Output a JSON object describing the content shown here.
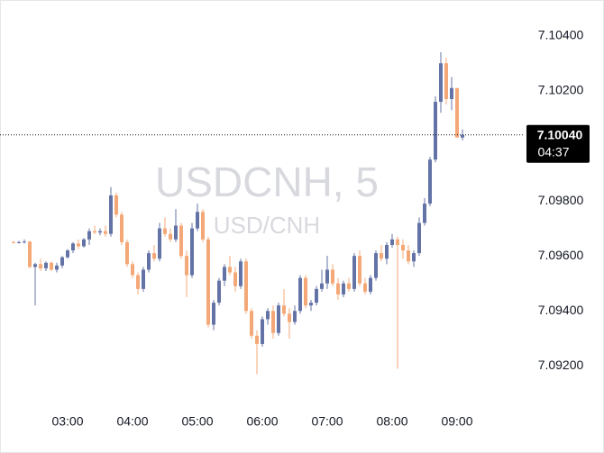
{
  "chart_data": {
    "type": "candlestick",
    "watermark_title": "USDCNH, 5",
    "watermark_subtitle": "USD/CNH",
    "categories": [
      null,
      null,
      null,
      null,
      null,
      null,
      null,
      null,
      null,
      null,
      "03:00",
      null,
      null,
      null,
      null,
      null,
      null,
      null,
      null,
      null,
      null,
      null,
      "04:00",
      null,
      null,
      null,
      null,
      null,
      null,
      null,
      null,
      null,
      null,
      null,
      "05:00",
      null,
      null,
      null,
      null,
      null,
      null,
      null,
      null,
      null,
      null,
      null,
      "06:00",
      null,
      null,
      null,
      null,
      null,
      null,
      null,
      null,
      null,
      null,
      null,
      "07:00",
      null,
      null,
      null,
      null,
      null,
      null,
      null,
      null,
      null,
      null,
      null,
      "08:00",
      null,
      null,
      null,
      null,
      null,
      null,
      null,
      null,
      null,
      null,
      null,
      "09:00",
      null
    ],
    "open": [
      7.0965,
      7.09648,
      7.0965,
      7.09652,
      7.0956,
      7.0957,
      7.09555,
      7.09575,
      7.0955,
      7.09565,
      7.09595,
      7.0962,
      7.09645,
      7.09635,
      7.0966,
      7.0969,
      7.09685,
      7.0969,
      7.0968,
      7.0982,
      7.0975,
      7.0965,
      7.0957,
      7.0953,
      7.0948,
      7.0955,
      7.0961,
      7.0959,
      7.097,
      7.0968,
      7.0966,
      7.0971,
      7.096,
      7.0953,
      7.097,
      7.0976,
      7.0966,
      7.0935,
      7.0943,
      7.0951,
      7.0956,
      7.0954,
      7.0949,
      7.0958,
      7.094,
      7.0931,
      7.0928,
      7.0937,
      7.094,
      7.0932,
      7.0942,
      7.0939,
      7.0936,
      7.094,
      7.0952,
      7.0942,
      7.0943,
      7.0948,
      7.095,
      7.0955,
      7.095,
      7.0946,
      7.095,
      7.0948,
      7.096,
      7.095,
      7.0947,
      7.0952,
      7.0961,
      7.0959,
      7.0964,
      7.0966,
      7.0964,
      7.0962,
      7.0958,
      7.0961,
      7.0972,
      7.0979,
      7.0995,
      7.1016,
      7.103,
      7.1017,
      7.1021,
      7.1003
    ],
    "high": [
      7.09655,
      7.09655,
      7.0966,
      7.09655,
      7.09575,
      7.0959,
      7.0958,
      7.0958,
      7.09575,
      7.096,
      7.09625,
      7.0965,
      7.0966,
      7.09665,
      7.097,
      7.0971,
      7.097,
      7.0971,
      7.0985,
      7.0983,
      7.0976,
      7.0966,
      7.0958,
      7.0954,
      7.0956,
      7.0962,
      7.0964,
      7.0972,
      7.0974,
      7.097,
      7.0977,
      7.0972,
      7.0962,
      7.0972,
      7.0979,
      7.0977,
      7.0967,
      7.0944,
      7.0952,
      7.0957,
      7.096,
      7.0956,
      7.0959,
      7.0959,
      7.0941,
      7.0933,
      7.0938,
      7.0941,
      7.0942,
      7.0943,
      7.0948,
      7.0941,
      7.0942,
      7.0953,
      7.0953,
      7.0944,
      7.0949,
      7.0955,
      7.096,
      7.0957,
      7.0952,
      7.0951,
      7.0952,
      7.0961,
      7.0962,
      7.0952,
      7.0953,
      7.0962,
      7.0964,
      7.0965,
      7.0968,
      7.0967,
      7.0966,
      7.0964,
      7.0962,
      7.0974,
      7.0981,
      7.0996,
      7.1018,
      7.1034,
      7.1032,
      7.1025,
      7.1021,
      7.1006
    ],
    "low": [
      7.09645,
      7.09645,
      7.09645,
      7.09555,
      7.0942,
      7.09545,
      7.09545,
      7.09545,
      7.0954,
      7.09555,
      7.0959,
      7.0961,
      7.09625,
      7.0963,
      7.0964,
      7.0968,
      7.09675,
      7.0967,
      7.0967,
      7.0974,
      7.0964,
      7.0956,
      7.0952,
      7.0946,
      7.0947,
      7.0954,
      7.0958,
      7.0958,
      7.0967,
      7.0965,
      7.0965,
      7.0959,
      7.0945,
      7.0952,
      7.0969,
      7.0965,
      7.0934,
      7.0933,
      7.0942,
      7.0949,
      7.0953,
      7.0947,
      7.0948,
      7.0939,
      7.093,
      7.0917,
      7.0927,
      7.0935,
      7.093,
      7.0931,
      7.0938,
      7.093,
      7.0935,
      7.0939,
      7.0941,
      7.094,
      7.0942,
      7.0947,
      7.0948,
      7.0949,
      7.0944,
      7.0945,
      7.0947,
      7.0947,
      7.0949,
      7.0946,
      7.0946,
      7.0951,
      7.0958,
      7.0957,
      7.0963,
      7.0919,
      7.0959,
      7.0957,
      7.0956,
      7.096,
      7.0971,
      7.0978,
      7.0994,
      7.1012,
      7.1015,
      7.1013,
      7.1003,
      7.1002
    ],
    "close": [
      7.09648,
      7.0965,
      7.09652,
      7.0956,
      7.0957,
      7.09555,
      7.09575,
      7.0955,
      7.09565,
      7.09595,
      7.0962,
      7.09645,
      7.09635,
      7.0966,
      7.0969,
      7.09685,
      7.0969,
      7.0968,
      7.0982,
      7.0975,
      7.0965,
      7.0957,
      7.0953,
      7.0948,
      7.0955,
      7.0961,
      7.0959,
      7.097,
      7.0968,
      7.0966,
      7.0971,
      7.096,
      7.0953,
      7.097,
      7.0976,
      7.0966,
      7.0935,
      7.0943,
      7.0951,
      7.0956,
      7.0954,
      7.0949,
      7.0958,
      7.094,
      7.0931,
      7.0928,
      7.0937,
      7.094,
      7.0932,
      7.0942,
      7.0939,
      7.0936,
      7.094,
      7.0952,
      7.0942,
      7.0943,
      7.0948,
      7.095,
      7.0955,
      7.095,
      7.0946,
      7.095,
      7.0948,
      7.096,
      7.095,
      7.0947,
      7.0952,
      7.0961,
      7.0959,
      7.0964,
      7.0966,
      7.0964,
      7.0962,
      7.0958,
      7.0961,
      7.0972,
      7.0979,
      7.0995,
      7.1016,
      7.103,
      7.1017,
      7.1021,
      7.1003,
      7.1004
    ],
    "up_color": "#6473a6",
    "down_color": "#f4a877",
    "ylim": [
      7.0909,
      7.1053
    ],
    "yticks": [
      {
        "value": 7.092,
        "label": "7.09200"
      },
      {
        "value": 7.094,
        "label": "7.09400"
      },
      {
        "value": 7.096,
        "label": "7.09600"
      },
      {
        "value": 7.098,
        "label": "7.09800"
      },
      {
        "value": 7.102,
        "label": "7.10200"
      },
      {
        "value": 7.104,
        "label": "7.10400"
      }
    ],
    "last_price": {
      "value": 7.1004,
      "label": "7.10040"
    },
    "countdown": "04:37"
  }
}
